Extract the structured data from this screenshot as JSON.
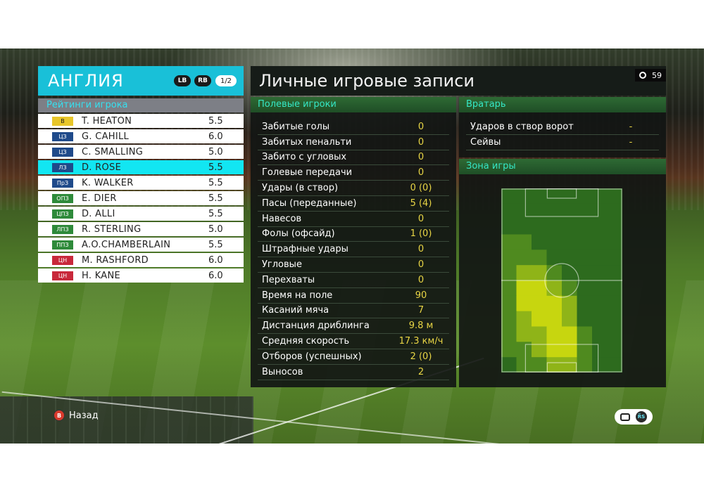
{
  "team": {
    "name": "АНГЛИЯ",
    "lb_label": "LB",
    "rb_label": "RB",
    "page": "1/2",
    "ratings_title": "Рейтинги игрока",
    "players": [
      {
        "pos": "В",
        "pos_color": "#e8c62a",
        "pos_text_color": "#1a1a1a",
        "name": "T. HEATON",
        "rating": "5.5"
      },
      {
        "pos": "ЦЗ",
        "pos_color": "#1f4a8a",
        "pos_text_color": "#ffffff",
        "name": "G. CAHILL",
        "rating": "6.0"
      },
      {
        "pos": "ЦЗ",
        "pos_color": "#1f4a8a",
        "pos_text_color": "#ffffff",
        "name": "C. SMALLING",
        "rating": "5.0"
      },
      {
        "pos": "ЛЗ",
        "pos_color": "#1f4a8a",
        "pos_text_color": "#ffffff",
        "name": "D. ROSE",
        "rating": "5.5"
      },
      {
        "pos": "ПрЗ",
        "pos_color": "#1f4a8a",
        "pos_text_color": "#ffffff",
        "name": "K. WALKER",
        "rating": "5.5"
      },
      {
        "pos": "ОПЗ",
        "pos_color": "#2e8a3a",
        "pos_text_color": "#ffffff",
        "name": "E. DIER",
        "rating": "5.5"
      },
      {
        "pos": "ЦПЗ",
        "pos_color": "#2e8a3a",
        "pos_text_color": "#ffffff",
        "name": "D. ALLI",
        "rating": "5.5"
      },
      {
        "pos": "ЛПЗ",
        "pos_color": "#2e8a3a",
        "pos_text_color": "#ffffff",
        "name": "R. STERLING",
        "rating": "5.0"
      },
      {
        "pos": "ППЗ",
        "pos_color": "#2e8a3a",
        "pos_text_color": "#ffffff",
        "name": "A.O.CHAMBERLAIN",
        "rating": "5.5"
      },
      {
        "pos": "ЦН",
        "pos_color": "#c8283a",
        "pos_text_color": "#ffffff",
        "name": "M. RASHFORD",
        "rating": "6.0"
      },
      {
        "pos": "ЦН",
        "pos_color": "#c8283a",
        "pos_text_color": "#ffffff",
        "name": "H. KANE",
        "rating": "6.0"
      }
    ],
    "selected_index": 3
  },
  "records": {
    "title": "Личные игровые записи",
    "timer": "59",
    "field_header": "Полевые игроки",
    "stats": [
      {
        "label": "Забитые голы",
        "value": "0"
      },
      {
        "label": "Забитых пенальти",
        "value": "0"
      },
      {
        "label": "Забито с угловых",
        "value": "0"
      },
      {
        "label": "Голевые передачи",
        "value": "0"
      },
      {
        "label": "Удары (в створ)",
        "value": "0 (0)"
      },
      {
        "label": "Пасы (переданные)",
        "value": "5 (4)"
      },
      {
        "label": "Навесов",
        "value": "0"
      },
      {
        "label": "Фолы (офсайд)",
        "value": "1 (0)"
      },
      {
        "label": "Штрафные удары",
        "value": "0"
      },
      {
        "label": "Угловые",
        "value": "0"
      },
      {
        "label": "Перехваты",
        "value": "0"
      },
      {
        "label": "Время на поле",
        "value": "90"
      },
      {
        "label": "Касаний мяча",
        "value": "7"
      },
      {
        "label": "Дистанция дриблинга",
        "value": "9.8 м"
      },
      {
        "label": "Средняя скорость",
        "value": "17.3 км/ч"
      },
      {
        "label": "Отборов (успешных)",
        "value": "2 (0)"
      },
      {
        "label": "Выносов",
        "value": "2"
      }
    ],
    "gk_header": "Вратарь",
    "gk_stats": [
      {
        "label": "Ударов в створ ворот",
        "value": "-"
      },
      {
        "label": "Сейвы",
        "value": "-"
      }
    ],
    "zone_header": "Зона игры",
    "heatmap": {
      "cols": 8,
      "rows": 12,
      "levels": [
        [
          0,
          0,
          0,
          0,
          0,
          0,
          0,
          0
        ],
        [
          0,
          0,
          0,
          0,
          0,
          0,
          0,
          0
        ],
        [
          0,
          0,
          0,
          0,
          0,
          0,
          0,
          0
        ],
        [
          1,
          1,
          0,
          0,
          0,
          0,
          0,
          0
        ],
        [
          1,
          1,
          1,
          0,
          0,
          0,
          0,
          0
        ],
        [
          1,
          2,
          2,
          1,
          0,
          0,
          0,
          0
        ],
        [
          1,
          3,
          3,
          2,
          1,
          0,
          0,
          0
        ],
        [
          1,
          3,
          3,
          3,
          2,
          0,
          0,
          0
        ],
        [
          1,
          2,
          3,
          3,
          2,
          0,
          0,
          0
        ],
        [
          1,
          2,
          2,
          3,
          3,
          1,
          0,
          0
        ],
        [
          1,
          1,
          2,
          3,
          3,
          1,
          0,
          0
        ],
        [
          0,
          1,
          1,
          2,
          2,
          1,
          0,
          0
        ]
      ],
      "colors": [
        "#2d6b1e",
        "#4f8a1f",
        "#8fb418",
        "#c7d60f"
      ]
    }
  },
  "footer": {
    "back_label": "Назад",
    "b_button": "B",
    "rs_button": "R̅S"
  }
}
